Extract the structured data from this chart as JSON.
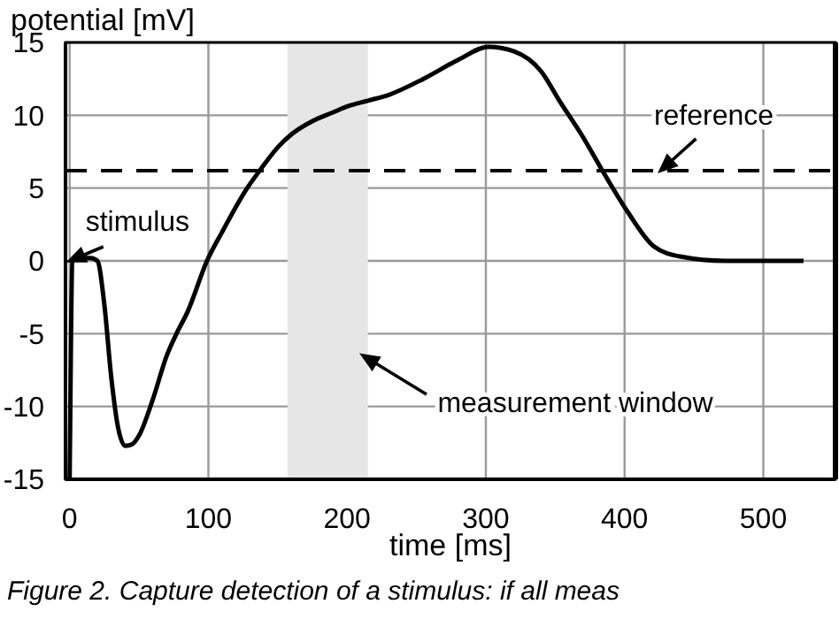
{
  "chart_data": {
    "type": "line",
    "xlabel": "time [ms]",
    "ylabel": "potential [mV]",
    "x": [
      0,
      1,
      2,
      5,
      10,
      15,
      20,
      25,
      30,
      35,
      40,
      45,
      50,
      60,
      70,
      77,
      85,
      99,
      110,
      128,
      137,
      150,
      160,
      175,
      190,
      200,
      215,
      230,
      255,
      280,
      302,
      320,
      340,
      353,
      370,
      384,
      402,
      421,
      440,
      472,
      529
    ],
    "series": [
      {
        "color": "#000000",
        "values": [
          -15,
          -5,
          0,
          0.2,
          0.2,
          0.2,
          0,
          -3,
          -8,
          -11.5,
          -12.7,
          -12.6,
          -12,
          -9.5,
          -6.5,
          -5,
          -3.5,
          0,
          2,
          5,
          6.2,
          7.8,
          8.7,
          9.6,
          10.2,
          10.6,
          11,
          11.4,
          12.5,
          13.8,
          14.7,
          14.4,
          13,
          11,
          8.5,
          6.2,
          3.4,
          1,
          0.3,
          0,
          0
        ]
      }
    ],
    "xlim": [
      -3,
      552
    ],
    "xticks": [
      0,
      100,
      200,
      300,
      400,
      500
    ],
    "ylim": [
      -15,
      15
    ],
    "yticks": [
      -15,
      -10,
      -5,
      0,
      5,
      10,
      15
    ],
    "grid": true,
    "ref_lines": [
      {
        "axis": "y",
        "value": 6.2,
        "line_style": "dashed",
        "color": "#000000"
      }
    ],
    "bands": [
      {
        "axis": "x",
        "from": 157,
        "to": 215,
        "color": "#e6e6e6"
      }
    ],
    "annotations": [
      {
        "text": "stimulus",
        "x": 0,
        "y": 0
      },
      {
        "text": "reference",
        "x": 426,
        "y": 6.2
      },
      "measurement window",
      "Figure 2. Capture detection of a stimulus: if all meas"
    ]
  }
}
